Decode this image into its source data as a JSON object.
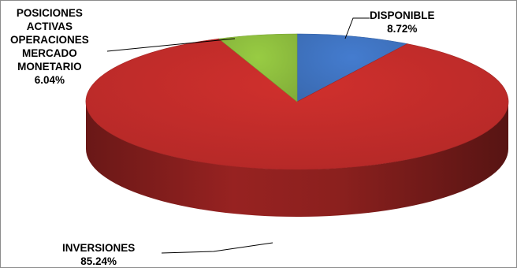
{
  "chart_data": {
    "type": "pie",
    "title": "",
    "style": "3d-tilted",
    "start_angle_deg": 0,
    "direction": "clockwise",
    "slices": [
      {
        "label_lines": [
          "DISPONIBLE"
        ],
        "value_label": "8.72%",
        "value": 8.72,
        "color": "#3f73c0"
      },
      {
        "label_lines": [
          "INVERSIONES"
        ],
        "value_label": "85.24%",
        "value": 85.24,
        "color": "#c12c2a"
      },
      {
        "label_lines": [
          "POSICIONES",
          "ACTIVAS",
          "OPERACIONES",
          "MERCADO",
          "MONETARIO"
        ],
        "value_label": "6.04%",
        "value": 6.04,
        "color": "#8dbd3e"
      }
    ]
  }
}
